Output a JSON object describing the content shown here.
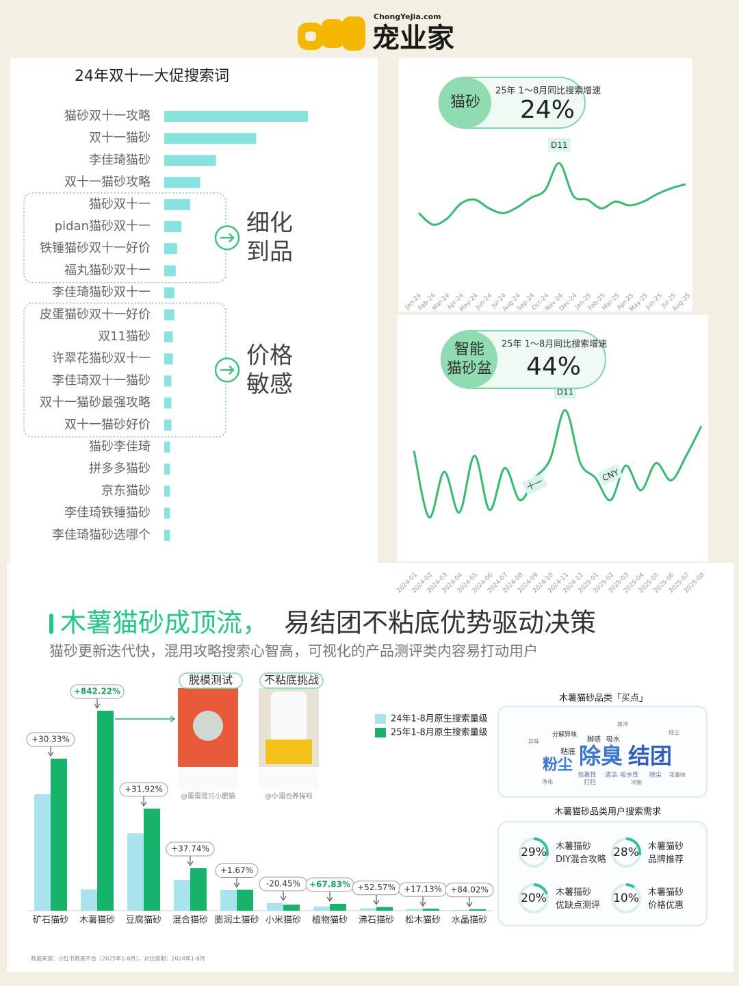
{
  "brand": {
    "site": "ChongYeJia.com",
    "name": "宠业家"
  },
  "chart_data": [
    {
      "type": "hbar",
      "title": "24年双十一大促搜索词",
      "categories": [
        "猫砂双十一攻略",
        "双十一猫砂",
        "李佳琦猫砂",
        "双十一猫砂攻略",
        "猫砂双十一",
        "pidan猫砂双十一",
        "铁锤猫砂双十一好价",
        "福丸猫砂双十一",
        "李佳琦猫砂双十一",
        "皮蛋猫砂双十一好价",
        "双11猫砂",
        "许翠花猫砂双十一",
        "李佳琦双十一猫砂",
        "双十一猫砂最强攻略",
        "双十一猫砂好价",
        "猫砂李佳琦",
        "拼多多猫砂",
        "京东猫砂",
        "李佳琦铁锤猫砂",
        "李佳琦猫砂选哪个"
      ],
      "values": [
        100,
        64,
        36,
        25,
        18,
        12,
        9,
        8,
        7,
        7,
        6,
        6,
        5,
        5,
        5,
        4,
        4,
        4,
        4,
        4
      ],
      "xlim": [
        0,
        100
      ],
      "color": "#86e3de",
      "annotations": [
        {
          "lines": [
            "细化",
            "到品"
          ]
        },
        {
          "lines": [
            "价格",
            "敏感"
          ]
        }
      ]
    },
    {
      "type": "line",
      "badge": {
        "lines": [
          "猫砂"
        ],
        "caption": "25年 1～8月同比搜索增速",
        "value": "24%"
      },
      "x": [
        "Jan-24",
        "Feb-24",
        "Mar-24",
        "Apr-24",
        "May-24",
        "Jun-24",
        "Jul-24",
        "Aug-24",
        "Sep-24",
        "Oct-24",
        "Nov-24",
        "Dec-24",
        "Jan-25",
        "Feb-25",
        "Mar-25",
        "Apr-25",
        "May-25",
        "Jun-25",
        "Jul-25",
        "Aug-25"
      ],
      "series": [
        {
          "color": "#2fbf6c",
          "values": [
            42,
            30,
            36,
            52,
            56,
            47,
            42,
            48,
            58,
            66,
            94,
            60,
            56,
            47,
            54,
            50,
            54,
            62,
            68,
            72
          ]
        }
      ],
      "ylim": [
        0,
        100
      ],
      "annotations": [
        "D11"
      ]
    },
    {
      "type": "line",
      "badge": {
        "lines": [
          "智能",
          "猫砂盆"
        ],
        "caption": "25年 1～8月同比搜索增速",
        "value": "44%"
      },
      "x": [
        "2024-01",
        "2024-02",
        "2024-03",
        "2024-04",
        "2024-05",
        "2024-06",
        "2024-07",
        "2024-08",
        "2024-09",
        "2024-10",
        "2024-11",
        "2024-12",
        "2025-01",
        "2025-02",
        "2025-03",
        "2025-04",
        "2025-05",
        "2025-06",
        "2025-07",
        "2025-08"
      ],
      "series": [
        {
          "color": "#2fbf6c",
          "values": [
            62,
            8,
            45,
            12,
            58,
            14,
            48,
            22,
            40,
            55,
            95,
            52,
            40,
            22,
            50,
            30,
            52,
            38,
            58,
            82
          ]
        }
      ],
      "ylim": [
        0,
        100
      ],
      "annotations": [
        "十一",
        "D11",
        "CNY"
      ]
    },
    {
      "type": "grouped_bar",
      "categories": [
        "矿石猫砂",
        "木薯猫砂",
        "豆腐猫砂",
        "混合猫砂",
        "膨润土猫砂",
        "小米猫砂",
        "植物猫砂",
        "沸石猫砂",
        "松木猫砂",
        "水晶猫砂"
      ],
      "series": [
        {
          "name": "24年1-8月原生搜索量级",
          "color": "#a9e3ee",
          "values": [
            170,
            31,
            113,
            45,
            30,
            11,
            6,
            3.5,
            2.5,
            1.2
          ]
        },
        {
          "name": "25年1-8月原生搜索量级",
          "color": "#16b36a",
          "values": [
            222,
            292,
            149,
            62,
            30.5,
            8.75,
            10,
            5.3,
            2.9,
            2.2
          ]
        }
      ],
      "growth_labels": [
        "+30.33%",
        "+842.22%",
        "+31.92%",
        "+37.74%",
        "+1.67%",
        "-20.45%",
        "+67.83%",
        "+52.57%",
        "+17.13%",
        "+84.02%"
      ],
      "ylim": [
        0,
        300
      ]
    },
    {
      "type": "donut",
      "title": "木薯猫砂品类用户搜索需求",
      "values": [
        29,
        28,
        20,
        10
      ],
      "value_labels": [
        "29%",
        "28%",
        "20%",
        "10%"
      ],
      "labels": [
        [
          "木薯猫砂",
          "DIY混合攻略"
        ],
        [
          "木薯猫砂",
          "品牌推荐"
        ],
        [
          "木薯猫砂",
          "优缺点测评"
        ],
        [
          "木薯猫砂",
          "价格优惠"
        ]
      ],
      "vlim": [
        0,
        100
      ],
      "color": "#2fc0a4"
    }
  ],
  "section": {
    "title_highlight": "木薯猫砂成顶流，",
    "title_rest": "易结团不粘底优势驱动决策",
    "subtitle": "猫砂更新迭代快，混用攻略搜索心智高，可视化的产品测评类内容易打动用户",
    "source": "数据来源：小红书数据平台（2025年1-8月），对比周期：2024年1-8月"
  },
  "photos": [
    {
      "label": "脱模测试",
      "credit": "@蛋蛋是只小肥猫"
    },
    {
      "label": "不粘底挑战",
      "credit": "@小湄也养猫啦"
    }
  ],
  "word_cloud": {
    "title": "木薯猫砂品类「买点」",
    "words": [
      "除臭",
      "结团",
      "粉尘",
      "粘底",
      "吸水",
      "脚感",
      "包裹性",
      "清洁",
      "吸水性",
      "除尘",
      "分解异味",
      "打扫",
      "净化",
      "冲厕",
      "花香味",
      "异味",
      "易冲",
      "低尘"
    ]
  }
}
